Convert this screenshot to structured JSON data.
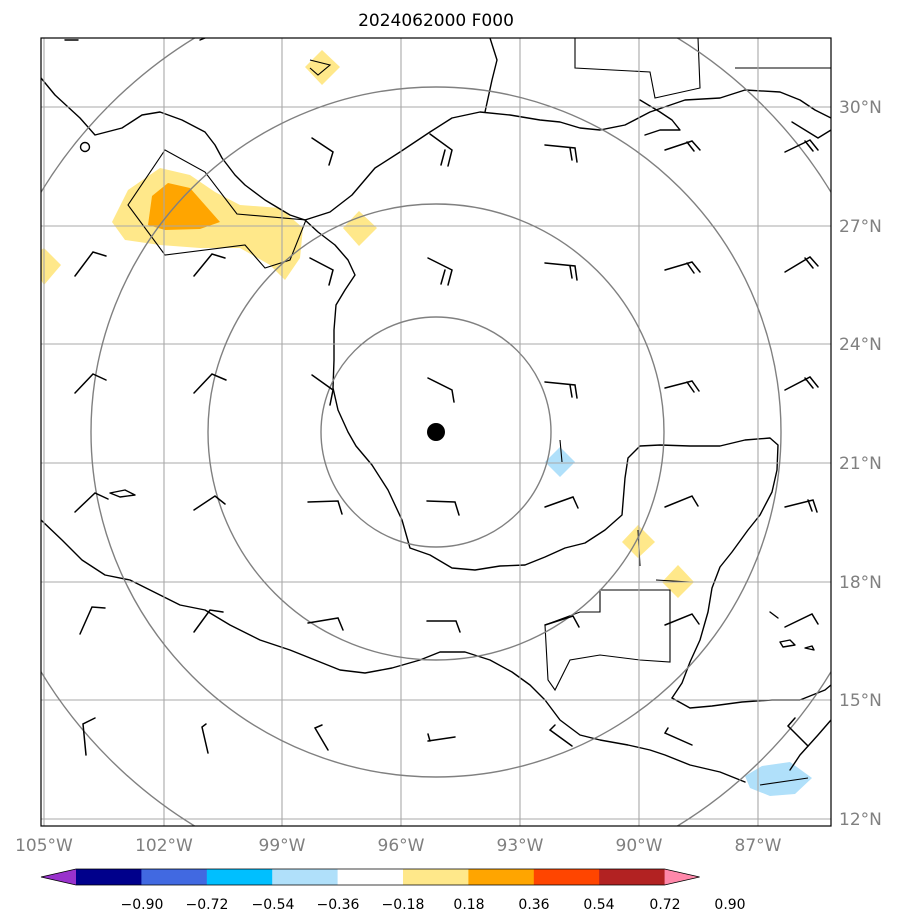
{
  "title": "2024062000 F000",
  "lat_labels": [
    "30°N",
    "27°N",
    "24°N",
    "21°N",
    "18°N",
    "15°N",
    "12°N"
  ],
  "lon_labels": [
    "105°W",
    "102°W",
    "99°W",
    "96°W",
    "93°W",
    "90°W",
    "87°W"
  ],
  "extent": {
    "lon": [
      -105,
      -85
    ],
    "lat": [
      11.8,
      32
    ]
  },
  "center_marker": {
    "lon": -95.1,
    "lat": 21.8
  },
  "range_rings_count": 4,
  "colorbar": {
    "ticks": [
      "−0.90",
      "−0.72",
      "−0.54",
      "−0.36",
      "−0.18",
      "0.18",
      "0.36",
      "0.54",
      "0.72",
      "0.90"
    ],
    "colors": [
      "#9932cc",
      "#00008b",
      "#4169e1",
      "#00bfff",
      "#b0e0fa",
      "#ffffff",
      "#ffe88a",
      "#ffa500",
      "#ff4500",
      "#b22222",
      "#ff88aa"
    ]
  },
  "colors": {
    "shade_light_yellow": "#ffe88a",
    "shade_orange": "#ffa500",
    "shade_light_blue": "#b0e0fa",
    "grid": "#a8a8a8",
    "rings": "#808080",
    "labels": "#808080"
  }
}
